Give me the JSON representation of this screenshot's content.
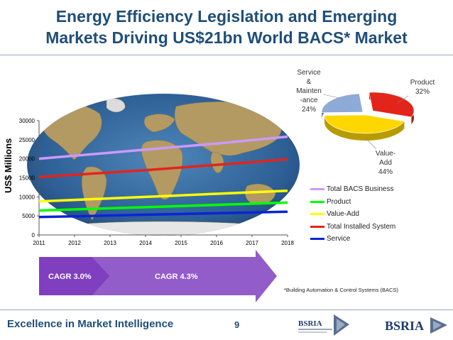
{
  "slide": {
    "title_line1": "Energy Efficiency Legislation and Emerging",
    "title_line2": "Markets Driving US$21bn World BACS* Market",
    "footnote": "*Building Automation & Control Systems (BACS)",
    "footer_text": "Excellence in Market Intelligence",
    "page_number": "9",
    "logo_text": "BSRIA",
    "cagr_left": "CAGR 3.0%",
    "cagr_right": "CAGR 4.3%"
  },
  "colors": {
    "title": "#1f4e79",
    "total_bacs": "#cc99ff",
    "product": "#00ff00",
    "value_add": "#ffff00",
    "total_installed": "#e3241b",
    "service": "#0b24d6",
    "arrow": "#7f3fbf"
  },
  "chart_data": [
    {
      "type": "line",
      "title": "",
      "ylabel": "US$ Millions",
      "xlabel": "",
      "x": [
        2011,
        2012,
        2013,
        2014,
        2015,
        2016,
        2017,
        2018
      ],
      "xlim": [
        2011,
        2018
      ],
      "ylim": [
        0,
        30000
      ],
      "yticks": [
        0,
        5000,
        10000,
        15000,
        20000,
        25000,
        30000
      ],
      "legend_position": "right",
      "grid": false,
      "series": [
        {
          "name": "Total BACS Business",
          "color": "#cc99ff",
          "values": [
            20000,
            20800,
            21600,
            22400,
            23200,
            24000,
            24900,
            25800
          ]
        },
        {
          "name": "Product",
          "color": "#00ff00",
          "values": [
            6400,
            6700,
            7000,
            7300,
            7600,
            7900,
            8200,
            8500
          ]
        },
        {
          "name": "Value-Add",
          "color": "#ffff00",
          "values": [
            8800,
            9200,
            9600,
            10000,
            10400,
            10800,
            11200,
            11600
          ]
        },
        {
          "name": "Total Installed System",
          "color": "#e3241b",
          "values": [
            15200,
            15800,
            16400,
            17000,
            17700,
            18400,
            19100,
            19900
          ]
        },
        {
          "name": "Service",
          "color": "#0b24d6",
          "values": [
            4700,
            4900,
            5100,
            5300,
            5500,
            5700,
            5900,
            6100
          ]
        }
      ]
    },
    {
      "type": "pie",
      "title": "",
      "slices": [
        {
          "label": "Product\n32%",
          "value": 32,
          "color": "#e3241b"
        },
        {
          "label": "Value-\nAdd\n44%",
          "value": 44,
          "color": "#ffd700"
        },
        {
          "label": "Service\n&\nMainten\n-ance\n24%",
          "value": 24,
          "color": "#8eaad6"
        }
      ]
    }
  ]
}
